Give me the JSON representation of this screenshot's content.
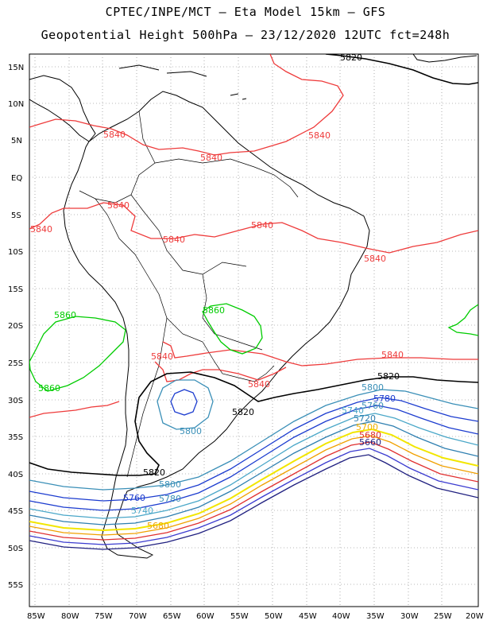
{
  "header": {
    "line1": "CPTEC/INPE/MCT –  Eta Model 15km – GFS",
    "line2": "Geopotential Height 500hPa – 23/12/2020 12UTC fct=248h"
  },
  "axes": {
    "lat_labels": [
      "15N",
      "10N",
      "5N",
      "EQ",
      "5S",
      "10S",
      "15S",
      "20S",
      "25S",
      "30S",
      "35S",
      "40S",
      "45S",
      "50S",
      "55S"
    ],
    "lon_labels": [
      "85W",
      "80W",
      "75W",
      "70W",
      "65W",
      "60W",
      "55W",
      "50W",
      "45W",
      "40W",
      "35W",
      "30W",
      "25W",
      "20W"
    ]
  },
  "contours": {
    "c5820": "5820",
    "c5840": "5840",
    "c5860": "5860",
    "c5800": "5800",
    "c5780": "5780",
    "c5760": "5760",
    "c5740": "5740",
    "c5720": "5720",
    "c5700": "5700",
    "c5680": "5680",
    "c5660": "5660"
  },
  "colors": {
    "c5840": "#ee3b3b",
    "c5860": "#00cc00",
    "c5820": "#000000",
    "c5800": "#3a8fb7",
    "c5780": "#1c3ccf",
    "c5760": "#1c3ccf",
    "c5740": "#4aa7c8",
    "c5720": "#2e7fb0",
    "c5700": "#f2e600",
    "c5680": "#f0a000",
    "c5660": "#e03030",
    "coast": "#000000"
  }
}
